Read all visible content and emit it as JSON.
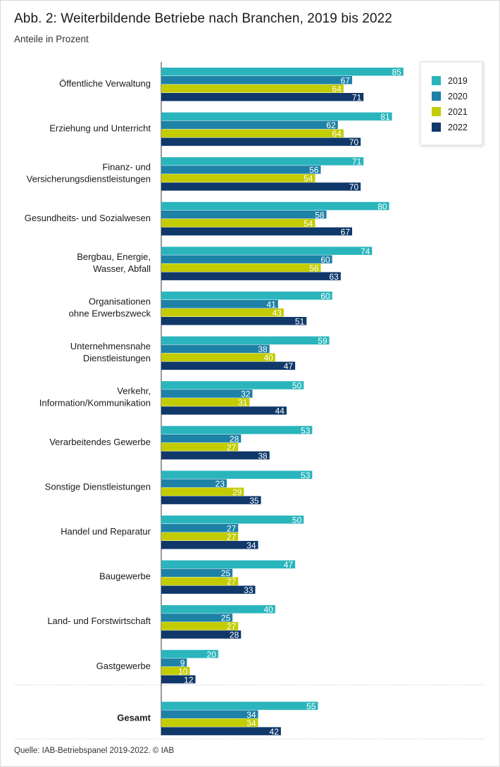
{
  "header": {
    "title": "Abb. 2: Weiterbildende Betriebe nach Branchen, 2019 bis 2022",
    "subtitle": "Anteile in Prozent"
  },
  "footer": {
    "source": "Quelle:  IAB-Betriebspanel 2019-2022. © IAB"
  },
  "chart_data": {
    "type": "bar",
    "orientation": "horizontal",
    "title": "Abb. 2: Weiterbildende Betriebe nach Branchen, 2019 bis 2022",
    "subtitle": "Anteile in Prozent",
    "xlabel": "",
    "ylabel": "",
    "xlim": [
      0,
      100
    ],
    "grid": false,
    "legend_position": "top-right",
    "categories": [
      [
        "Öffentliche Verwaltung"
      ],
      [
        "Erziehung und Unterricht"
      ],
      [
        "Finanz- und",
        "Versicherungsdienstleistungen"
      ],
      [
        "Gesundheits- und Sozialwesen"
      ],
      [
        "Bergbau, Energie,",
        "Wasser, Abfall"
      ],
      [
        "Organisationen",
        "ohne Erwerbszweck"
      ],
      [
        "Unternehmensnahe",
        "Dienstleistungen"
      ],
      [
        "Verkehr,",
        "Information/Kommunikation"
      ],
      [
        "Verarbeitendes Gewerbe"
      ],
      [
        "Sonstige Dienstleistungen"
      ],
      [
        "Handel und Reparatur"
      ],
      [
        "Baugewerbe"
      ],
      [
        "Land- und Forstwirtschaft"
      ],
      [
        "Gastgewerbe"
      ],
      [
        "Gesamt"
      ]
    ],
    "series": [
      {
        "name": "2019",
        "color": "#2ab5bd",
        "values": [
          85,
          81,
          71,
          80,
          74,
          60,
          59,
          50,
          53,
          53,
          50,
          47,
          40,
          20,
          55
        ]
      },
      {
        "name": "2020",
        "color": "#1e81a6",
        "values": [
          67,
          62,
          56,
          58,
          60,
          41,
          38,
          32,
          28,
          23,
          27,
          25,
          25,
          9,
          34
        ]
      },
      {
        "name": "2021",
        "color": "#c2cc00",
        "values": [
          64,
          64,
          54,
          54,
          56,
          43,
          40,
          31,
          27,
          29,
          27,
          27,
          27,
          10,
          34
        ]
      },
      {
        "name": "2022",
        "color": "#10386a",
        "values": [
          71,
          70,
          70,
          67,
          63,
          51,
          47,
          44,
          38,
          35,
          34,
          33,
          28,
          12,
          42
        ]
      }
    ]
  }
}
